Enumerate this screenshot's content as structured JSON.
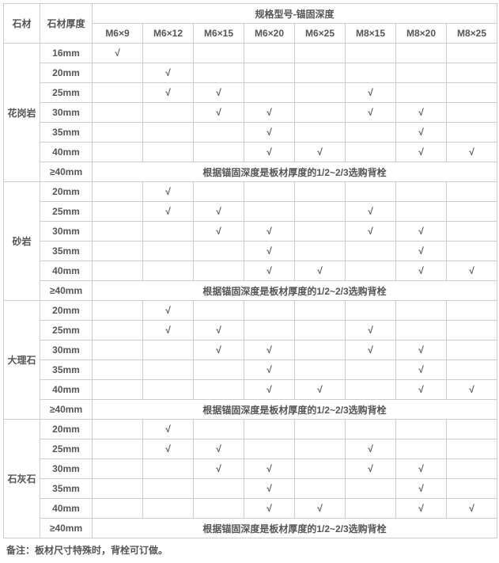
{
  "headers": {
    "stone": "石材",
    "thickness": "石材厚度",
    "specGroup": "规格型号-锚固深度",
    "specs": [
      "M6×9",
      "M6×12",
      "M6×15",
      "M6×20",
      "M6×25",
      "M8×15",
      "M8×20",
      "M8×25"
    ]
  },
  "check": "√",
  "note_ge40": "根据锚固深度是板材厚度的1/2~2/3选购背栓",
  "footnote": "备注：板材尺寸特殊时，背栓可订做。",
  "stones": [
    {
      "name": "花岗岩",
      "rows": [
        {
          "thick": "16mm",
          "marks": [
            1,
            0,
            0,
            0,
            0,
            0,
            0,
            0
          ]
        },
        {
          "thick": "20mm",
          "marks": [
            0,
            1,
            0,
            0,
            0,
            0,
            0,
            0
          ]
        },
        {
          "thick": "25mm",
          "marks": [
            0,
            1,
            1,
            0,
            0,
            1,
            0,
            0
          ]
        },
        {
          "thick": "30mm",
          "marks": [
            0,
            0,
            1,
            1,
            0,
            1,
            1,
            0
          ]
        },
        {
          "thick": "35mm",
          "marks": [
            0,
            0,
            0,
            1,
            0,
            0,
            1,
            0
          ]
        },
        {
          "thick": "40mm",
          "marks": [
            0,
            0,
            0,
            1,
            1,
            0,
            1,
            1
          ]
        },
        {
          "thick": "≥40mm",
          "note": true
        }
      ]
    },
    {
      "name": "砂岩",
      "rows": [
        {
          "thick": "20mm",
          "marks": [
            0,
            1,
            0,
            0,
            0,
            0,
            0,
            0
          ]
        },
        {
          "thick": "25mm",
          "marks": [
            0,
            1,
            1,
            0,
            0,
            1,
            0,
            0
          ]
        },
        {
          "thick": "30mm",
          "marks": [
            0,
            0,
            1,
            1,
            0,
            1,
            1,
            0
          ]
        },
        {
          "thick": "35mm",
          "marks": [
            0,
            0,
            0,
            1,
            0,
            0,
            1,
            0
          ]
        },
        {
          "thick": "40mm",
          "marks": [
            0,
            0,
            0,
            1,
            1,
            0,
            1,
            1
          ]
        },
        {
          "thick": "≥40mm",
          "note": true
        }
      ]
    },
    {
      "name": "大理石",
      "rows": [
        {
          "thick": "20mm",
          "marks": [
            0,
            1,
            0,
            0,
            0,
            0,
            0,
            0
          ]
        },
        {
          "thick": "25mm",
          "marks": [
            0,
            1,
            1,
            0,
            0,
            1,
            0,
            0
          ]
        },
        {
          "thick": "30mm",
          "marks": [
            0,
            0,
            1,
            1,
            0,
            1,
            1,
            0
          ]
        },
        {
          "thick": "35mm",
          "marks": [
            0,
            0,
            0,
            1,
            0,
            0,
            1,
            0
          ]
        },
        {
          "thick": "40mm",
          "marks": [
            0,
            0,
            0,
            1,
            1,
            0,
            1,
            1
          ]
        },
        {
          "thick": "≥40mm",
          "note": true
        }
      ]
    },
    {
      "name": "石灰石",
      "rows": [
        {
          "thick": "20mm",
          "marks": [
            0,
            1,
            0,
            0,
            0,
            0,
            0,
            0
          ]
        },
        {
          "thick": "25mm",
          "marks": [
            0,
            1,
            1,
            0,
            0,
            1,
            0,
            0
          ]
        },
        {
          "thick": "30mm",
          "marks": [
            0,
            0,
            1,
            1,
            0,
            1,
            1,
            0
          ]
        },
        {
          "thick": "35mm",
          "marks": [
            0,
            0,
            0,
            1,
            0,
            0,
            1,
            0
          ]
        },
        {
          "thick": "40mm",
          "marks": [
            0,
            0,
            0,
            1,
            1,
            0,
            1,
            1
          ]
        },
        {
          "thick": "≥40mm",
          "note": true
        }
      ]
    }
  ]
}
